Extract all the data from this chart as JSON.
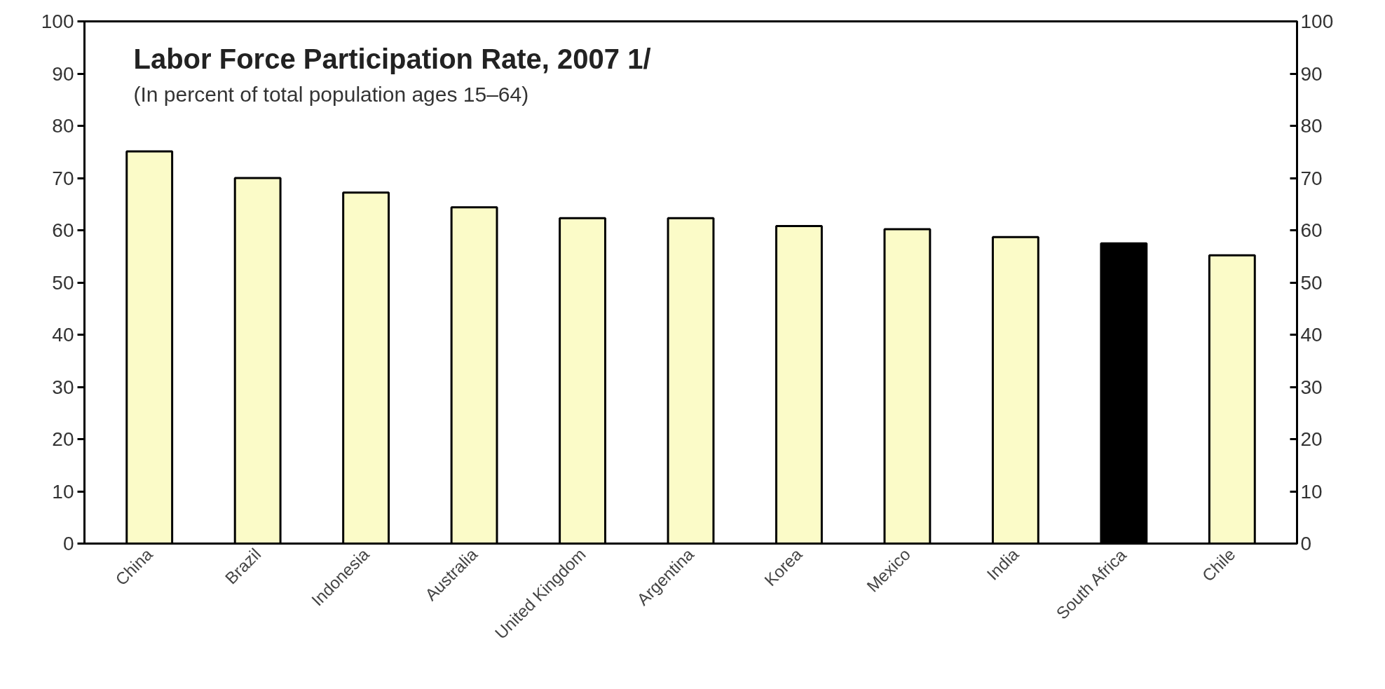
{
  "chart_data": {
    "type": "bar",
    "title": "Labor Force Participation Rate, 2007 1/",
    "subtitle": "(In percent of total population ages 15–64)",
    "categories": [
      "China",
      "Brazil",
      "Indonesia",
      "Australia",
      "United Kingdom",
      "Argentina",
      "Korea",
      "Mexico",
      "India",
      "South Africa",
      "Chile"
    ],
    "values": [
      75.1,
      70.0,
      67.2,
      64.4,
      62.3,
      62.3,
      60.8,
      60.2,
      58.7,
      57.5,
      55.2
    ],
    "colors": [
      "#fbfbc8",
      "#fbfbc8",
      "#fbfbc8",
      "#fbfbc8",
      "#fbfbc8",
      "#fbfbc8",
      "#fbfbc8",
      "#fbfbc8",
      "#fbfbc8",
      "#000000",
      "#fbfbc8"
    ],
    "ylim": [
      0,
      100
    ],
    "yticks": [
      0,
      10,
      20,
      30,
      40,
      50,
      60,
      70,
      80,
      90,
      100
    ],
    "y2lim": [
      0,
      100
    ],
    "y2ticks": [
      0,
      10,
      20,
      30,
      40,
      50,
      60,
      70,
      80,
      90,
      100
    ],
    "grid": false
  }
}
